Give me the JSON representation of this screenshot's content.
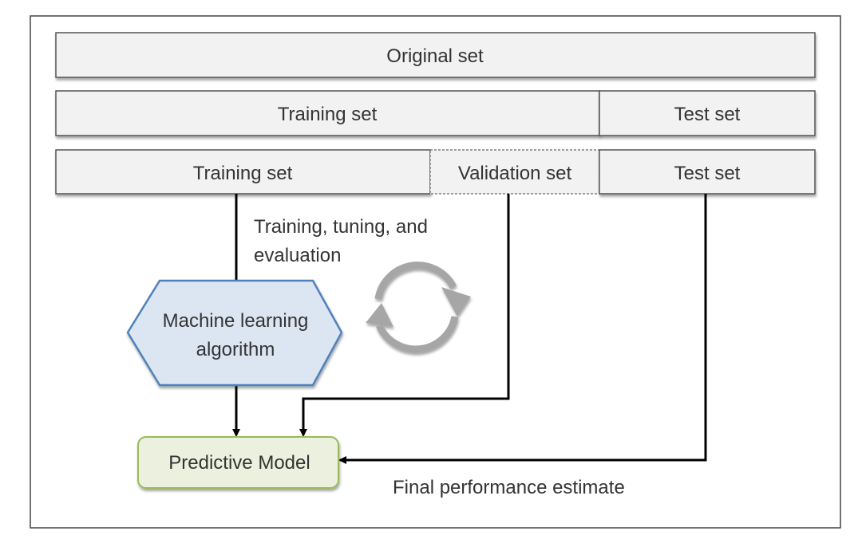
{
  "rows": {
    "original": {
      "label": "Original set"
    },
    "split1": {
      "training": "Training set",
      "test": "Test set"
    },
    "split2": {
      "training": "Training set",
      "validation": "Validation set",
      "test": "Test set"
    }
  },
  "loop_label": {
    "line1": "Training, tuning, and",
    "line2": "evaluation"
  },
  "algorithm": {
    "line1": "Machine learning",
    "line2": "algorithm"
  },
  "model": {
    "label": "Predictive Model"
  },
  "final_label": "Final performance estimate",
  "colors": {
    "set_fill": "#f2f2f2",
    "algorithm_fill": "#dce6f2",
    "algorithm_stroke": "#4f81bd",
    "model_fill": "#ebf1de",
    "model_stroke": "#9bbb59",
    "cycle": "#a6a6a6"
  },
  "icons": {
    "cycle": "refresh-cycle-icon"
  }
}
